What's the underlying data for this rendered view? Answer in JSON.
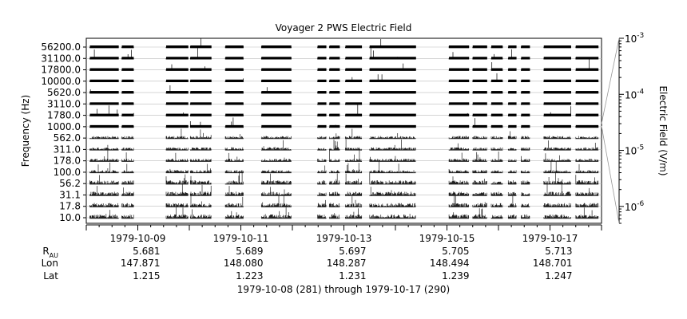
{
  "chart_data": {
    "type": "line",
    "title": "Voyager 2 PWS Electric Field",
    "ylabel": "Frequency (Hz)",
    "y2label": "Electric Field (V/m)",
    "xlabel": "1979-10-08 (281) through 1979-10-17 (290)",
    "channels": [
      "10.0",
      "17.8",
      "31.1",
      "56.2",
      "100.0",
      "178.0",
      "311.0",
      "562.0",
      "1000.0",
      "1780.0",
      "3110.0",
      "5620.0",
      "10000.0",
      "17800.0",
      "31100.0",
      "56200.0"
    ],
    "x_tick_labels": [
      "1979-10-09",
      "1979-10-11",
      "1979-10-13",
      "1979-10-15",
      "1979-10-17"
    ],
    "x_tick_days": [
      1,
      3,
      5,
      7,
      9
    ],
    "x_range_days": [
      0,
      10
    ],
    "field_axis": {
      "scale": "log",
      "range": [
        5e-07,
        0.001
      ],
      "ticks": [
        {
          "value": 1e-06,
          "label": "10",
          "exp": "-6"
        },
        {
          "value": 1e-05,
          "label": "10",
          "exp": "-5"
        },
        {
          "value": 0.0001,
          "label": "10",
          "exp": "-4"
        },
        {
          "value": 0.001,
          "label": "10",
          "exp": "-3"
        }
      ]
    },
    "data_segments_days": [
      [
        0.07,
        0.63
      ],
      [
        0.69,
        0.92
      ],
      [
        1.55,
        1.98
      ],
      [
        2.02,
        2.43
      ],
      [
        2.7,
        3.05
      ],
      [
        3.4,
        3.98
      ],
      [
        4.49,
        4.66
      ],
      [
        4.72,
        4.92
      ],
      [
        5.03,
        5.35
      ],
      [
        5.5,
        6.4
      ],
      [
        7.04,
        7.43
      ],
      [
        7.5,
        7.78
      ],
      [
        7.86,
        8.08
      ],
      [
        8.19,
        8.35
      ],
      [
        8.44,
        8.61
      ],
      [
        8.88,
        9.41
      ],
      [
        9.5,
        9.94
      ]
    ],
    "ephemeris": {
      "rows": [
        {
          "label": "R",
          "sub": "AU",
          "values": [
            "5.681",
            "5.689",
            "5.697",
            "5.705",
            "5.713"
          ]
        },
        {
          "label": "Lon",
          "values": [
            "147.871",
            "148.080",
            "148.287",
            "148.494",
            "148.701"
          ]
        },
        {
          "label": "Lat",
          "values": [
            "1.215",
            "1.223",
            "1.231",
            "1.239",
            "1.247"
          ]
        }
      ]
    }
  }
}
